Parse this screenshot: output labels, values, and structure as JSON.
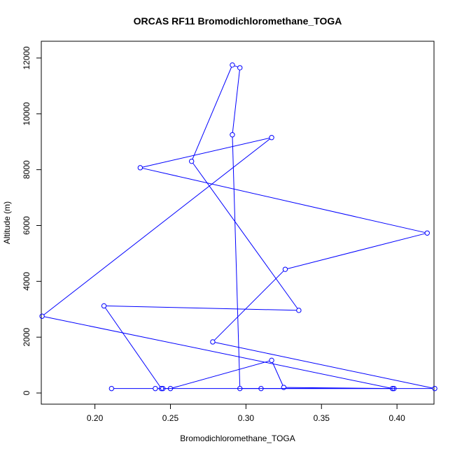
{
  "chart_data": {
    "type": "line",
    "title": "ORCAS RF11 Bromodichloromethane_TOGA",
    "xlabel": "Bromodichloromethane_TOGA",
    "ylabel": "Altitude (m)",
    "xlim": [
      0.1645,
      0.4245
    ],
    "ylim": [
      -400,
      12600
    ],
    "x_ticks": [
      0.2,
      0.25,
      0.3,
      0.35,
      0.4
    ],
    "x_tick_labels": [
      "0.20",
      "0.25",
      "0.30",
      "0.35",
      "0.40"
    ],
    "y_ticks": [
      0,
      2000,
      4000,
      6000,
      8000,
      10000,
      12000
    ],
    "y_tick_labels": [
      "0",
      "2000",
      "4000",
      "6000",
      "8000",
      "10000",
      "12000"
    ],
    "grid": false,
    "legend": "none",
    "markers": "open-circle",
    "line_color": "#0000ff",
    "series": [
      {
        "points": [
          {
            "x": 0.211,
            "y": 160
          },
          {
            "x": 0.24,
            "y": 160
          },
          {
            "x": 0.245,
            "y": 160
          },
          {
            "x": 0.25,
            "y": 160
          },
          {
            "x": 0.317,
            "y": 1170
          },
          {
            "x": 0.325,
            "y": 200
          },
          {
            "x": 0.398,
            "y": 160
          },
          {
            "x": 0.31,
            "y": 160
          },
          {
            "x": 0.296,
            "y": 160
          },
          {
            "x": 0.291,
            "y": 9250
          },
          {
            "x": 0.296,
            "y": 11650
          },
          {
            "x": 0.291,
            "y": 11750
          },
          {
            "x": 0.264,
            "y": 8300
          },
          {
            "x": 0.335,
            "y": 2960
          },
          {
            "x": 0.206,
            "y": 3120
          },
          {
            "x": 0.244,
            "y": 160
          },
          {
            "x": 0.425,
            "y": 160
          },
          {
            "x": 0.278,
            "y": 1830
          },
          {
            "x": 0.326,
            "y": 4430
          },
          {
            "x": 0.42,
            "y": 5730
          },
          {
            "x": 0.23,
            "y": 8070
          },
          {
            "x": 0.317,
            "y": 9150
          },
          {
            "x": 0.165,
            "y": 2750
          },
          {
            "x": 0.397,
            "y": 160
          }
        ]
      }
    ]
  }
}
